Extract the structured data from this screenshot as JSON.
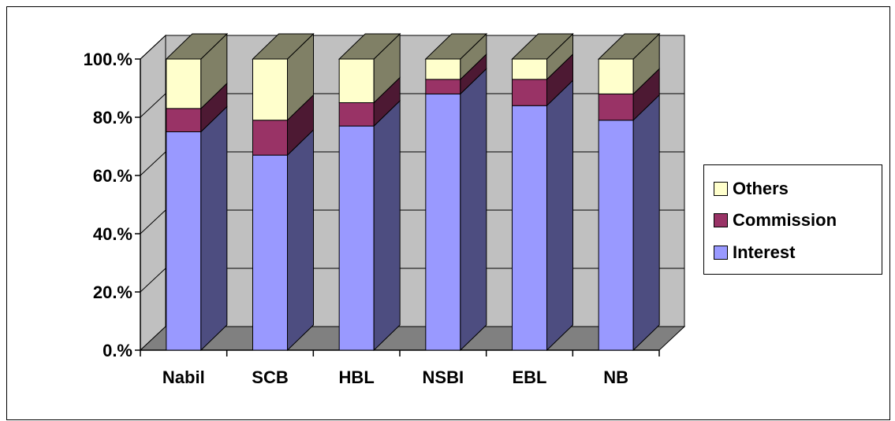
{
  "chart_data": {
    "type": "bar",
    "stacked": true,
    "percent_stacked": true,
    "three_d": true,
    "categories": [
      "Nabil",
      "SCB",
      "HBL",
      "NSBI",
      "EBL",
      "NB"
    ],
    "series": [
      {
        "name": "Interest",
        "values": [
          75,
          67,
          77,
          88,
          84,
          79
        ],
        "color": "#9999ff",
        "side_color": "#4d4d80"
      },
      {
        "name": "Commission",
        "values": [
          8,
          12,
          8,
          5,
          9,
          9
        ],
        "color": "#993366",
        "side_color": "#4d1933"
      },
      {
        "name": "Others",
        "values": [
          17,
          21,
          15,
          7,
          7,
          12
        ],
        "color": "#ffffcc",
        "side_color": "#808066"
      }
    ],
    "yticks": [
      "0.%",
      "20.%",
      "40.%",
      "60.%",
      "80.%",
      "100.%"
    ],
    "ylim": [
      0,
      100
    ],
    "grid": true,
    "legend": {
      "position": "right",
      "order": [
        "Others",
        "Commission",
        "Interest"
      ]
    },
    "colors": {
      "wall": "#c0c0c0",
      "floor": "#808080",
      "gridline": "#000000"
    }
  }
}
